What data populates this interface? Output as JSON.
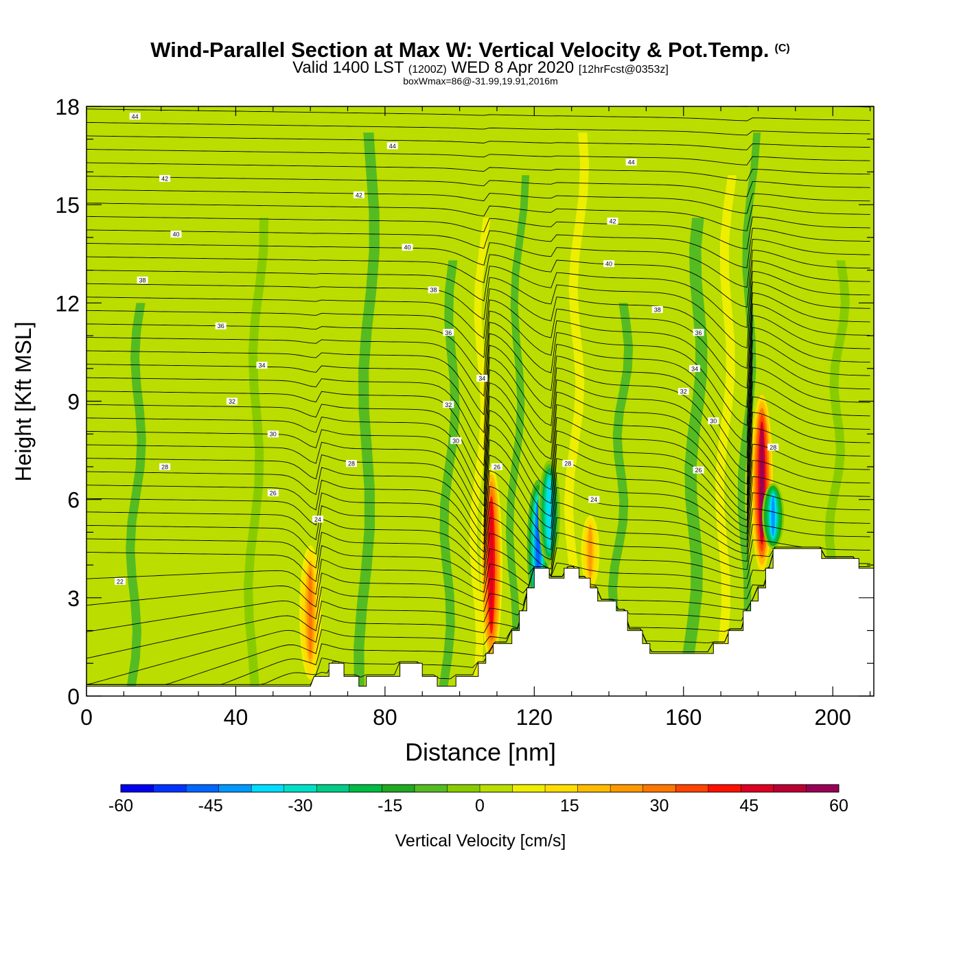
{
  "chart_data": {
    "type": "heatmap",
    "title": "Wind-Parallel Section at Max W: Vertical Velocity & Pot.Temp.",
    "title_mark": "(C)",
    "subtitle": {
      "valid_prefix": "Valid 1400 LST",
      "utc": "(1200Z)",
      "date": "WED 8 Apr 2020",
      "forecast": "[12hrFcst@0353z]"
    },
    "subtitle2": "boxWmax=86@-31.99,19.91,2016m",
    "xlabel": "Distance [nm]",
    "ylabel": "Height [Kft MSL]",
    "xlim": [
      0,
      211
    ],
    "ylim": [
      0,
      18
    ],
    "x_ticks": [
      0,
      40,
      80,
      120,
      160,
      200
    ],
    "y_ticks": [
      0,
      3,
      6,
      9,
      12,
      15,
      18
    ],
    "colorbar": {
      "label": "Vertical Velocity [cm/s]",
      "ticks": [
        -60,
        -45,
        -30,
        -15,
        0,
        15,
        30,
        45,
        60
      ],
      "colors": [
        "#0000f0",
        "#0033ff",
        "#0066ff",
        "#0099ff",
        "#00ddff",
        "#00e0c8",
        "#00cc88",
        "#00bb44",
        "#1faa1f",
        "#55bb22",
        "#88cc00",
        "#bbdd00",
        "#eeee00",
        "#ffdd00",
        "#ffbb00",
        "#ff9900",
        "#ff7700",
        "#ff4400",
        "#ff1100",
        "#dd0022",
        "#bb0033",
        "#990055"
      ]
    },
    "background_value": 2,
    "updrafts": [
      {
        "x": 60,
        "y0": 0.5,
        "y1": 4.6,
        "peak": 30
      },
      {
        "x": 108.5,
        "y0": 1.0,
        "y1": 7.0,
        "peak": 48
      },
      {
        "x": 135,
        "y0": 3.2,
        "y1": 5.6,
        "peak": 22
      },
      {
        "x": 181,
        "y0": 3.8,
        "y1": 9.2,
        "peak": 56
      }
    ],
    "downdrafts": [
      {
        "x": 121,
        "y0": 2.5,
        "y1": 6.6,
        "peak": -48
      },
      {
        "x": 124,
        "y0": 4.0,
        "y1": 7.2,
        "peak": -36
      },
      {
        "x": 184,
        "y0": 4.5,
        "y1": 6.5,
        "peak": -40
      }
    ],
    "terrain": [
      [
        0,
        0.3
      ],
      [
        60,
        0.3
      ],
      [
        61,
        0.6
      ],
      [
        65,
        0.6
      ],
      [
        65,
        1.0
      ],
      [
        69,
        1.0
      ],
      [
        69,
        0.6
      ],
      [
        73,
        0.6
      ],
      [
        73,
        0.3
      ],
      [
        75,
        0.3
      ],
      [
        75,
        0.6
      ],
      [
        84,
        0.6
      ],
      [
        84,
        1.0
      ],
      [
        90,
        1.0
      ],
      [
        90,
        0.6
      ],
      [
        94,
        0.6
      ],
      [
        94,
        0.3
      ],
      [
        99,
        0.3
      ],
      [
        99,
        0.6
      ],
      [
        105,
        0.6
      ],
      [
        105,
        1.0
      ],
      [
        107,
        1.0
      ],
      [
        107,
        1.3
      ],
      [
        109,
        1.3
      ],
      [
        109,
        1.6
      ],
      [
        114,
        1.6
      ],
      [
        114,
        2.0
      ],
      [
        116,
        2.0
      ],
      [
        116,
        2.6
      ],
      [
        118,
        2.6
      ],
      [
        118,
        3.3
      ],
      [
        120,
        3.3
      ],
      [
        120,
        3.9
      ],
      [
        124,
        3.9
      ],
      [
        124,
        3.6
      ],
      [
        128,
        3.6
      ],
      [
        128,
        3.9
      ],
      [
        132,
        3.9
      ],
      [
        132,
        3.6
      ],
      [
        135,
        3.6
      ],
      [
        135,
        3.3
      ],
      [
        137,
        3.3
      ],
      [
        137,
        2.9
      ],
      [
        142,
        2.9
      ],
      [
        142,
        2.6
      ],
      [
        145,
        2.6
      ],
      [
        145,
        2.0
      ],
      [
        149,
        2.0
      ],
      [
        149,
        1.6
      ],
      [
        151,
        1.6
      ],
      [
        151,
        1.3
      ],
      [
        168,
        1.3
      ],
      [
        168,
        1.6
      ],
      [
        172,
        1.6
      ],
      [
        172,
        2.0
      ],
      [
        176,
        2.0
      ],
      [
        176,
        2.6
      ],
      [
        178,
        2.6
      ],
      [
        178,
        2.9
      ],
      [
        180,
        2.9
      ],
      [
        180,
        3.3
      ],
      [
        182,
        3.3
      ],
      [
        182,
        3.9
      ],
      [
        184,
        3.9
      ],
      [
        184,
        4.5
      ],
      [
        197,
        4.5
      ],
      [
        197,
        4.2
      ],
      [
        207,
        4.2
      ],
      [
        207,
        3.9
      ],
      [
        211,
        3.9
      ]
    ],
    "isentrope_labels": [
      {
        "x": 13,
        "y": 17.7,
        "text": "44"
      },
      {
        "x": 82,
        "y": 16.8,
        "text": "44"
      },
      {
        "x": 146,
        "y": 16.3,
        "text": "44"
      },
      {
        "x": 21,
        "y": 15.8,
        "text": "42"
      },
      {
        "x": 73,
        "y": 15.3,
        "text": "42"
      },
      {
        "x": 141,
        "y": 14.5,
        "text": "42"
      },
      {
        "x": 24,
        "y": 14.1,
        "text": "40"
      },
      {
        "x": 86,
        "y": 13.7,
        "text": "40"
      },
      {
        "x": 140,
        "y": 13.2,
        "text": "40"
      },
      {
        "x": 15,
        "y": 12.7,
        "text": "38"
      },
      {
        "x": 93,
        "y": 12.4,
        "text": "38"
      },
      {
        "x": 153,
        "y": 11.8,
        "text": "38"
      },
      {
        "x": 36,
        "y": 11.3,
        "text": "36"
      },
      {
        "x": 97,
        "y": 11.1,
        "text": "36"
      },
      {
        "x": 164,
        "y": 11.1,
        "text": "36"
      },
      {
        "x": 47,
        "y": 10.1,
        "text": "34"
      },
      {
        "x": 106,
        "y": 9.7,
        "text": "34"
      },
      {
        "x": 163,
        "y": 10.0,
        "text": "34"
      },
      {
        "x": 39,
        "y": 9.0,
        "text": "32"
      },
      {
        "x": 97,
        "y": 8.9,
        "text": "32"
      },
      {
        "x": 160,
        "y": 9.3,
        "text": "32"
      },
      {
        "x": 50,
        "y": 8.0,
        "text": "30"
      },
      {
        "x": 99,
        "y": 7.8,
        "text": "30"
      },
      {
        "x": 168,
        "y": 8.4,
        "text": "30"
      },
      {
        "x": 21,
        "y": 7.0,
        "text": "28"
      },
      {
        "x": 71,
        "y": 7.1,
        "text": "28"
      },
      {
        "x": 129,
        "y": 7.1,
        "text": "28"
      },
      {
        "x": 184,
        "y": 7.6,
        "text": "28"
      },
      {
        "x": 50,
        "y": 6.2,
        "text": "26"
      },
      {
        "x": 110,
        "y": 7.0,
        "text": "26"
      },
      {
        "x": 164,
        "y": 6.9,
        "text": "26"
      },
      {
        "x": 62,
        "y": 5.4,
        "text": "24"
      },
      {
        "x": 136,
        "y": 6.0,
        "text": "24"
      },
      {
        "x": 9,
        "y": 3.5,
        "text": "22"
      }
    ]
  }
}
